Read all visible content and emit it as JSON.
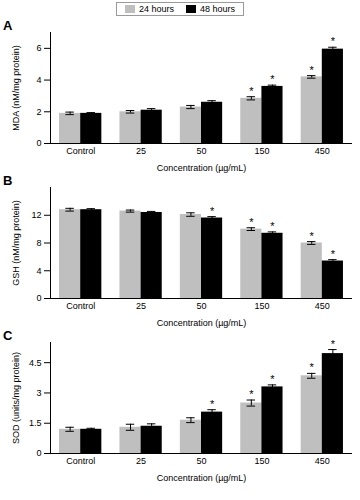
{
  "chart_data": [
    {
      "type": "bar",
      "title": "A",
      "legend": "top",
      "x_label": "Concentration (µg/mL)",
      "y_label": "MDA (nM/mg protein)",
      "categories": [
        "Control",
        "25",
        "50",
        "150",
        "450"
      ],
      "ylim": [
        0,
        7
      ],
      "yticks": [
        0,
        2,
        4,
        6
      ],
      "series": [
        {
          "name": "24 hours",
          "color": "#bfbfbf",
          "values": [
            1.9,
            2.0,
            2.3,
            2.85,
            4.2
          ],
          "errors": [
            0.08,
            0.08,
            0.1,
            0.1,
            0.08
          ],
          "annotations": [
            null,
            null,
            null,
            "*",
            "*"
          ]
        },
        {
          "name": "48 hours",
          "color": "#000000",
          "values": [
            1.9,
            2.1,
            2.6,
            3.6,
            5.95
          ],
          "errors": [
            0.05,
            0.1,
            0.1,
            0.08,
            0.12
          ],
          "annotations": [
            null,
            null,
            null,
            "*",
            "*"
          ]
        }
      ]
    },
    {
      "type": "bar",
      "title": "B",
      "x_label": "Concentration (µg/mL)",
      "y_label": "GSH (nM/mg protein)",
      "categories": [
        "Control",
        "25",
        "50",
        "150",
        "450"
      ],
      "ylim": [
        0,
        16
      ],
      "yticks": [
        0,
        4,
        8,
        12
      ],
      "series": [
        {
          "name": "24 hours",
          "color": "#bfbfbf",
          "values": [
            12.8,
            12.6,
            12.1,
            10.0,
            8.0
          ],
          "errors": [
            0.2,
            0.15,
            0.25,
            0.2,
            0.2
          ],
          "annotations": [
            null,
            null,
            null,
            "*",
            "*"
          ]
        },
        {
          "name": "48 hours",
          "color": "#000000",
          "values": [
            12.8,
            12.4,
            11.6,
            9.4,
            5.4
          ],
          "errors": [
            0.15,
            0.15,
            0.2,
            0.2,
            0.2
          ],
          "annotations": [
            null,
            null,
            "*",
            "*",
            "*"
          ]
        }
      ]
    },
    {
      "type": "bar",
      "title": "C",
      "x_label": "Concentration (µg/mL)",
      "y_label": "SOD (units/mg protein)",
      "categories": [
        "Control",
        "25",
        "50",
        "150",
        "450"
      ],
      "ylim": [
        0,
        5.5
      ],
      "yticks": [
        0,
        1.5,
        3,
        4.5
      ],
      "series": [
        {
          "name": "24 hours",
          "color": "#bfbfbf",
          "values": [
            1.2,
            1.3,
            1.65,
            2.5,
            3.85
          ],
          "errors": [
            0.1,
            0.15,
            0.12,
            0.15,
            0.12
          ],
          "annotations": [
            null,
            null,
            null,
            "*",
            "*"
          ]
        },
        {
          "name": "48 hours",
          "color": "#000000",
          "values": [
            1.2,
            1.35,
            2.05,
            3.3,
            4.95
          ],
          "errors": [
            0.05,
            0.12,
            0.12,
            0.1,
            0.2
          ],
          "annotations": [
            null,
            null,
            "*",
            "*",
            "*"
          ]
        }
      ]
    }
  ]
}
